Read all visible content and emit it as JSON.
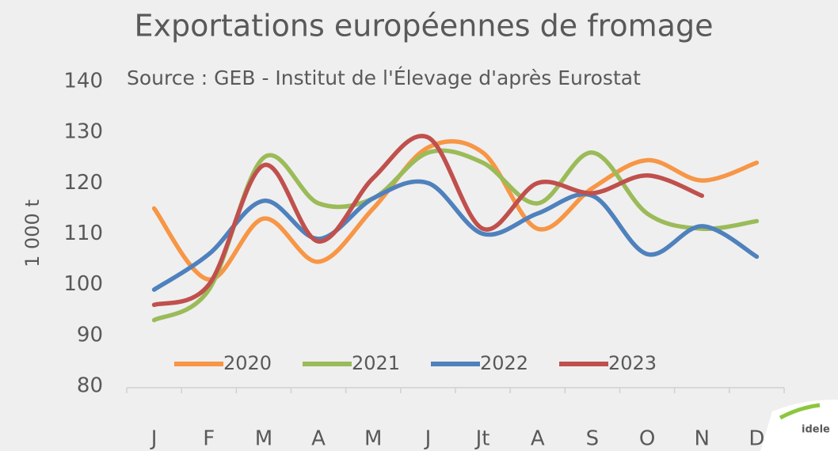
{
  "chart_data": {
    "type": "line",
    "title": "Exportations européennes de fromage",
    "subtitle": "Source : GEB - Institut de l'Élevage d'après Eurostat",
    "y_label": "1 000 t",
    "logo_text": "idele",
    "categories": [
      "J",
      "F",
      "M",
      "A",
      "M",
      "J",
      "Jt",
      "A",
      "S",
      "O",
      "N",
      "D"
    ],
    "series": [
      {
        "name": "2020",
        "color": "#f79646",
        "values": [
          115,
          101,
          113,
          104.5,
          115,
          127,
          126,
          111,
          119,
          124.5,
          120.5,
          124
        ]
      },
      {
        "name": "2021",
        "color": "#9bbb59",
        "values": [
          93,
          99,
          125,
          116,
          117,
          126,
          124,
          116,
          126,
          114,
          111,
          112.5
        ]
      },
      {
        "name": "2022",
        "color": "#4f81bd",
        "values": [
          99,
          106,
          116.5,
          109,
          117,
          120,
          110,
          114,
          117.5,
          106,
          111.5,
          105.5
        ]
      },
      {
        "name": "2023",
        "color": "#c0504d",
        "values": [
          96,
          100,
          123.5,
          108.5,
          121,
          129,
          111,
          120,
          118,
          121.5,
          117.5,
          null
        ]
      }
    ],
    "ylim": [
      80,
      140
    ],
    "yticks": [
      80,
      90,
      100,
      110,
      120,
      130,
      140
    ],
    "legend": "bottom",
    "grid": false
  }
}
